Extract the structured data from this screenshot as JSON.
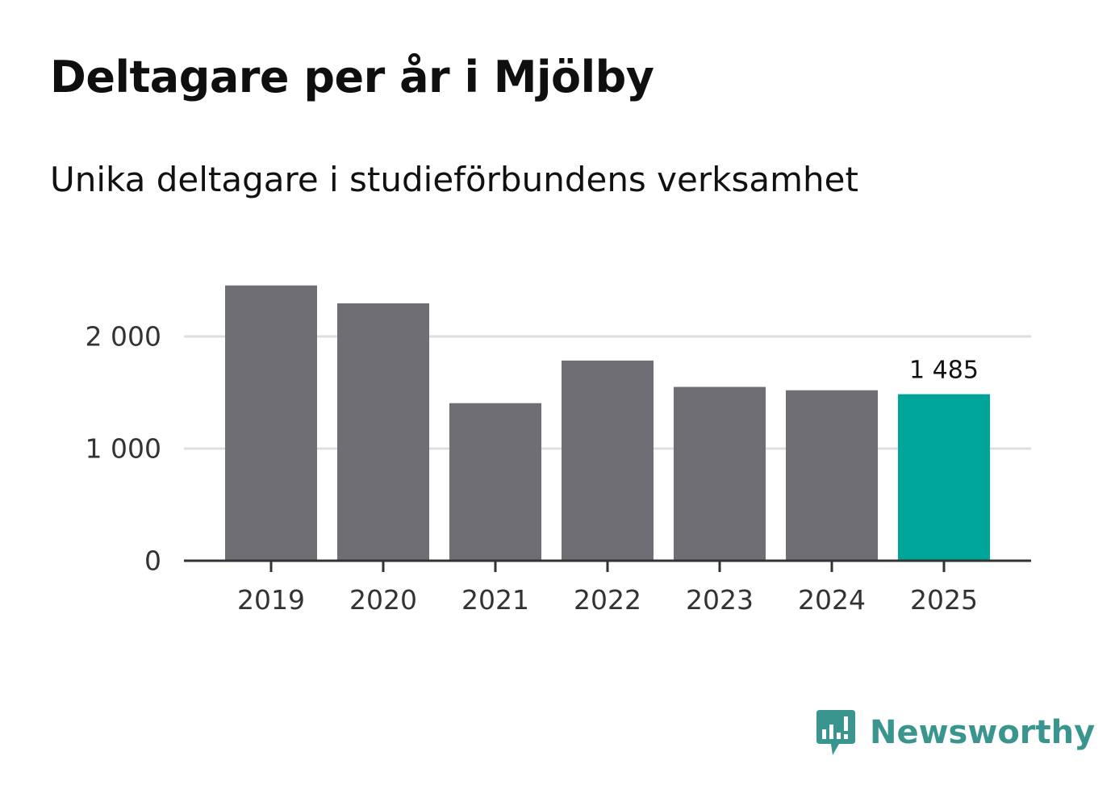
{
  "title": "Deltagare per år i Mjölby",
  "subtitle": "Unika deltagare i studieförbundens verksamhet",
  "brand": {
    "name": "Newsworthy",
    "icon": "bar-chart-badge-icon",
    "color": "#3a958f"
  },
  "colors": {
    "bar_default": "#6f6e74",
    "bar_highlight": "#00a59a",
    "grid": "#dedede",
    "axis": "#333333",
    "tick_text": "#333333",
    "label_text": "#111111"
  },
  "chart_data": {
    "type": "bar",
    "title": "Deltagare per år i Mjölby",
    "subtitle": "Unika deltagare i studieförbundens verksamhet",
    "xlabel": "",
    "ylabel": "",
    "categories": [
      "2019",
      "2020",
      "2021",
      "2022",
      "2023",
      "2024",
      "2025"
    ],
    "values": [
      2455,
      2295,
      1405,
      1785,
      1550,
      1520,
      1485
    ],
    "highlight_index": 6,
    "data_labels": [
      {
        "index": 6,
        "text": "1 485"
      }
    ],
    "yticks": [
      {
        "value": 0,
        "label": "0"
      },
      {
        "value": 1000,
        "label": "1 000"
      },
      {
        "value": 2000,
        "label": "2 000"
      }
    ],
    "gridlines": [
      1000,
      2000
    ],
    "ylim": [
      0,
      2600
    ],
    "grid": true,
    "legend": "none"
  }
}
